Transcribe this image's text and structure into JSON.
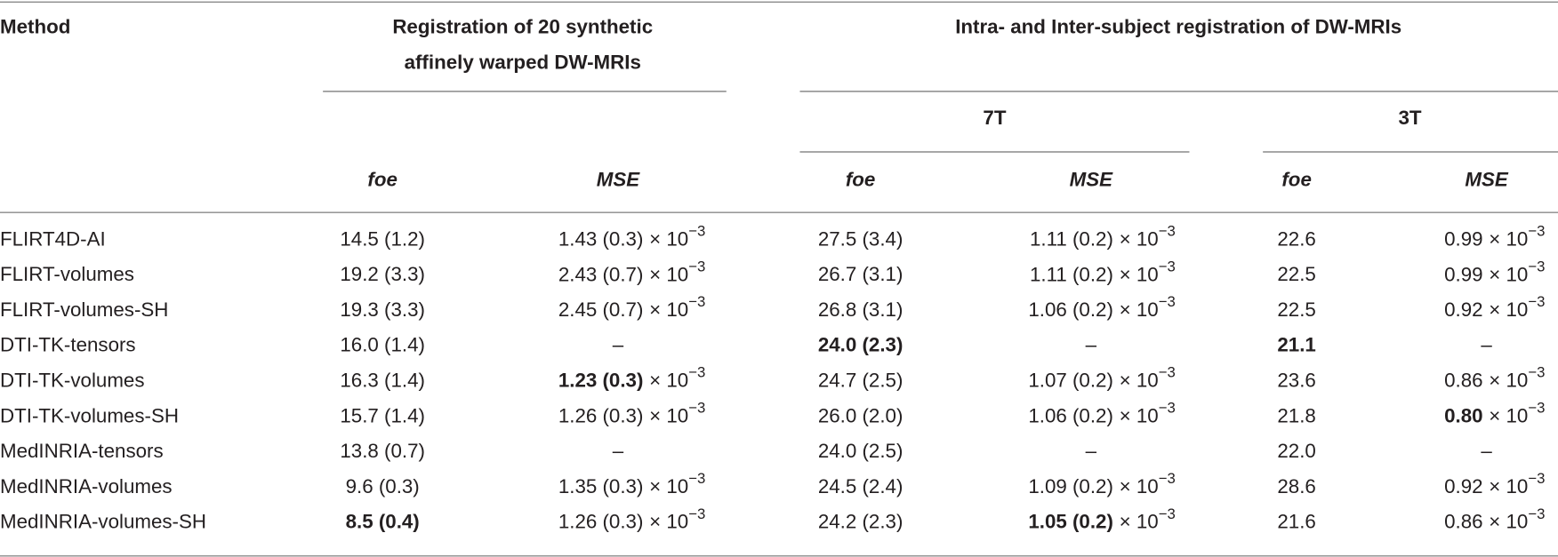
{
  "header": {
    "method": "Method",
    "group1": [
      "Registration of 20 synthetic",
      "affinely warped DW-MRIs"
    ],
    "group2": "Intra- and Inter-subject registration of DW-MRIs",
    "sub7": "7T",
    "sub3": "3T",
    "columns": [
      "foe",
      "MSE",
      "foe",
      "MSE",
      "foe",
      "MSE"
    ]
  },
  "table": {
    "rows": [
      [
        "FLIRT4D-AI",
        "14.5 (1.2)",
        {
          "text": "1.43 (0.3)",
          "mult": "× 10",
          "exp": "−3"
        },
        "27.5 (3.4)",
        {
          "text": "1.11 (0.2)",
          "mult": "× 10",
          "exp": "−3"
        },
        "22.6",
        {
          "text": "0.99",
          "mult": "× 10",
          "exp": "−3"
        }
      ],
      [
        "FLIRT-volumes",
        "19.2 (3.3)",
        {
          "text": "2.43 (0.7)",
          "mult": "× 10",
          "exp": "−3"
        },
        "26.7 (3.1)",
        {
          "text": "1.11 (0.2)",
          "mult": "× 10",
          "exp": "−3"
        },
        "22.5",
        {
          "text": "0.99",
          "mult": "× 10",
          "exp": "−3"
        }
      ],
      [
        "FLIRT-volumes-SH",
        "19.3 (3.3)",
        {
          "text": "2.45 (0.7)",
          "mult": "× 10",
          "exp": "−3"
        },
        "26.8 (3.1)",
        {
          "text": "1.06 (0.2)",
          "mult": "× 10",
          "exp": "−3"
        },
        "22.5",
        {
          "text": "0.92",
          "mult": "× 10",
          "exp": "−3"
        }
      ],
      [
        "DTI-TK-tensors",
        "16.0 (1.4)",
        "–",
        {
          "text": "24.0 (2.3)",
          "bold": true
        },
        "–",
        {
          "text": "21.1",
          "bold": true
        },
        "–"
      ],
      [
        "DTI-TK-volumes",
        "16.3 (1.4)",
        {
          "text": "1.23 (0.3)",
          "bold": true,
          "mult": "× 10",
          "exp": "−3"
        },
        "24.7 (2.5)",
        {
          "text": "1.07 (0.2)",
          "mult": "× 10",
          "exp": "−3"
        },
        "23.6",
        {
          "text": "0.86",
          "mult": "× 10",
          "exp": "−3"
        }
      ],
      [
        "DTI-TK-volumes-SH",
        "15.7 (1.4)",
        {
          "text": "1.26 (0.3)",
          "mult": "× 10",
          "exp": "−3"
        },
        "26.0 (2.0)",
        {
          "text": "1.06 (0.2)",
          "mult": "× 10",
          "exp": "−3"
        },
        "21.8",
        {
          "text": "0.80",
          "bold": true,
          "mult": "× 10",
          "exp": "−3"
        }
      ],
      [
        "MedINRIA-tensors",
        "13.8 (0.7)",
        "–",
        "24.0 (2.5)",
        "–",
        "22.0",
        "–"
      ],
      [
        "MedINRIA-volumes",
        "9.6 (0.3)",
        {
          "text": "1.35 (0.3)",
          "mult": "× 10",
          "exp": "−3"
        },
        "24.5 (2.4)",
        {
          "text": "1.09 (0.2)",
          "mult": "× 10",
          "exp": "−3"
        },
        "28.6",
        {
          "text": "0.92",
          "mult": "× 10",
          "exp": "−3"
        }
      ],
      [
        "MedINRIA-volumes-SH",
        {
          "text": "8.5 (0.4)",
          "bold": true
        },
        {
          "text": "1.26 (0.3)",
          "mult": "× 10",
          "exp": "−3"
        },
        "24.2 (2.3)",
        {
          "text": "1.05 (0.2)",
          "bold": true,
          "mult": "× 10",
          "exp": "−3"
        },
        "21.6",
        {
          "text": "0.86",
          "mult": "× 10",
          "exp": "−3"
        }
      ]
    ]
  }
}
